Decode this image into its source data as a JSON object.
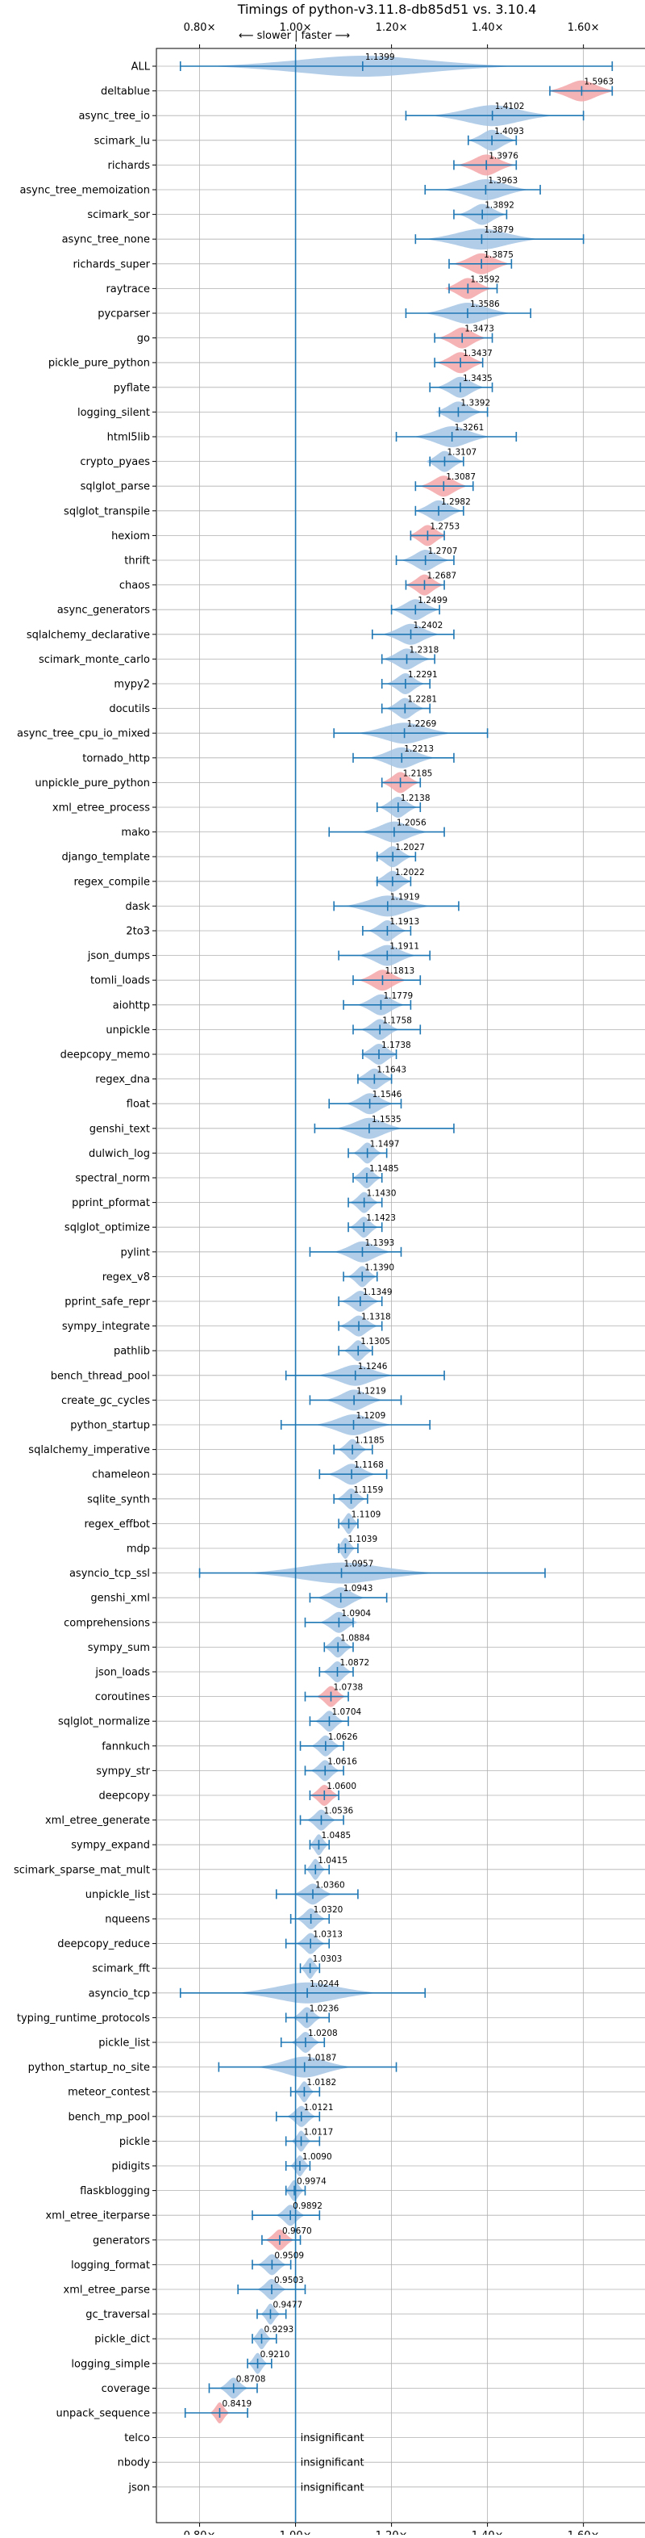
{
  "chart_data": {
    "type": "violin",
    "title": "Timings of python-v3.11.8-db85d51 vs. 3.10.4",
    "direction_label": "⟵ slower | faster ⟶",
    "x_ticks": [
      0.8,
      1.0,
      1.2,
      1.4,
      1.6
    ],
    "x_tick_labels": [
      "0.80×",
      "1.00×",
      "1.20×",
      "1.40×",
      "1.60×"
    ],
    "xlim": [
      0.71,
      1.73
    ],
    "reference_line": 1.0,
    "grid": true,
    "colors": {
      "faster": "#a4c4e4",
      "slower": "#f4a6a8",
      "whisker": "#1f77b4",
      "reference": "#1f77b4",
      "grid": "#b0b0b0"
    },
    "insignificant_text": "insignificant",
    "benchmarks": [
      {
        "name": "ALL",
        "mean": 1.1399,
        "label": "1.1399",
        "min": 0.76,
        "max": 1.66,
        "spread": 0.32,
        "highlight": false
      },
      {
        "name": "deltablue",
        "mean": 1.5963,
        "label": "1.5963",
        "min": 1.53,
        "max": 1.66,
        "spread": 0.07,
        "highlight": true
      },
      {
        "name": "async_tree_io",
        "mean": 1.4102,
        "label": "1.4102",
        "min": 1.23,
        "max": 1.6,
        "spread": 0.13,
        "highlight": false
      },
      {
        "name": "scimark_lu",
        "mean": 1.4093,
        "label": "1.4093",
        "min": 1.36,
        "max": 1.46,
        "spread": 0.05,
        "highlight": false
      },
      {
        "name": "richards",
        "mean": 1.3976,
        "label": "1.3976",
        "min": 1.33,
        "max": 1.46,
        "spread": 0.06,
        "highlight": true
      },
      {
        "name": "async_tree_memoization",
        "mean": 1.3963,
        "label": "1.3963",
        "min": 1.27,
        "max": 1.51,
        "spread": 0.09,
        "highlight": false
      },
      {
        "name": "scimark_sor",
        "mean": 1.3892,
        "label": "1.3892",
        "min": 1.33,
        "max": 1.44,
        "spread": 0.05,
        "highlight": false
      },
      {
        "name": "async_tree_none",
        "mean": 1.3879,
        "label": "1.3879",
        "min": 1.25,
        "max": 1.6,
        "spread": 0.12,
        "highlight": false
      },
      {
        "name": "richards_super",
        "mean": 1.3875,
        "label": "1.3875",
        "min": 1.32,
        "max": 1.45,
        "spread": 0.06,
        "highlight": true
      },
      {
        "name": "raytrace",
        "mean": 1.3592,
        "label": "1.3592",
        "min": 1.32,
        "max": 1.42,
        "spread": 0.05,
        "highlight": true
      },
      {
        "name": "pycparser",
        "mean": 1.3586,
        "label": "1.3586",
        "min": 1.23,
        "max": 1.49,
        "spread": 0.09,
        "highlight": false
      },
      {
        "name": "go",
        "mean": 1.3473,
        "label": "1.3473",
        "min": 1.29,
        "max": 1.41,
        "spread": 0.05,
        "highlight": true
      },
      {
        "name": "pickle_pure_python",
        "mean": 1.3437,
        "label": "1.3437",
        "min": 1.29,
        "max": 1.39,
        "spread": 0.05,
        "highlight": true
      },
      {
        "name": "pyflate",
        "mean": 1.3435,
        "label": "1.3435",
        "min": 1.28,
        "max": 1.41,
        "spread": 0.05,
        "highlight": false
      },
      {
        "name": "logging_silent",
        "mean": 1.3392,
        "label": "1.3392",
        "min": 1.3,
        "max": 1.4,
        "spread": 0.05,
        "highlight": false
      },
      {
        "name": "html5lib",
        "mean": 1.3261,
        "label": "1.3261",
        "min": 1.21,
        "max": 1.46,
        "spread": 0.08,
        "highlight": false
      },
      {
        "name": "crypto_pyaes",
        "mean": 1.3107,
        "label": "1.3107",
        "min": 1.28,
        "max": 1.35,
        "spread": 0.04,
        "highlight": false
      },
      {
        "name": "sqlglot_parse",
        "mean": 1.3087,
        "label": "1.3087",
        "min": 1.25,
        "max": 1.37,
        "spread": 0.05,
        "highlight": true
      },
      {
        "name": "sqlglot_transpile",
        "mean": 1.2982,
        "label": "1.2982",
        "min": 1.25,
        "max": 1.35,
        "spread": 0.05,
        "highlight": false
      },
      {
        "name": "hexiom",
        "mean": 1.2753,
        "label": "1.2753",
        "min": 1.24,
        "max": 1.31,
        "spread": 0.04,
        "highlight": true
      },
      {
        "name": "thrift",
        "mean": 1.2707,
        "label": "1.2707",
        "min": 1.21,
        "max": 1.33,
        "spread": 0.05,
        "highlight": false
      },
      {
        "name": "chaos",
        "mean": 1.2687,
        "label": "1.2687",
        "min": 1.23,
        "max": 1.31,
        "spread": 0.04,
        "highlight": true
      },
      {
        "name": "async_generators",
        "mean": 1.2499,
        "label": "1.2499",
        "min": 1.2,
        "max": 1.3,
        "spread": 0.05,
        "highlight": false
      },
      {
        "name": "sqlalchemy_declarative",
        "mean": 1.2402,
        "label": "1.2402",
        "min": 1.16,
        "max": 1.33,
        "spread": 0.06,
        "highlight": false
      },
      {
        "name": "scimark_monte_carlo",
        "mean": 1.2318,
        "label": "1.2318",
        "min": 1.18,
        "max": 1.29,
        "spread": 0.05,
        "highlight": false
      },
      {
        "name": "mypy2",
        "mean": 1.2291,
        "label": "1.2291",
        "min": 1.18,
        "max": 1.28,
        "spread": 0.04,
        "highlight": false
      },
      {
        "name": "docutils",
        "mean": 1.2281,
        "label": "1.2281",
        "min": 1.18,
        "max": 1.28,
        "spread": 0.04,
        "highlight": false
      },
      {
        "name": "async_tree_cpu_io_mixed",
        "mean": 1.2269,
        "label": "1.2269",
        "min": 1.08,
        "max": 1.4,
        "spread": 0.1,
        "highlight": false
      },
      {
        "name": "tornado_http",
        "mean": 1.2213,
        "label": "1.2213",
        "min": 1.12,
        "max": 1.33,
        "spread": 0.07,
        "highlight": false
      },
      {
        "name": "unpickle_pure_python",
        "mean": 1.2185,
        "label": "1.2185",
        "min": 1.18,
        "max": 1.26,
        "spread": 0.04,
        "highlight": true
      },
      {
        "name": "xml_etree_process",
        "mean": 1.2138,
        "label": "1.2138",
        "min": 1.17,
        "max": 1.26,
        "spread": 0.04,
        "highlight": false
      },
      {
        "name": "mako",
        "mean": 1.2056,
        "label": "1.2056",
        "min": 1.07,
        "max": 1.31,
        "spread": 0.07,
        "highlight": false
      },
      {
        "name": "django_template",
        "mean": 1.2027,
        "label": "1.2027",
        "min": 1.17,
        "max": 1.25,
        "spread": 0.04,
        "highlight": false
      },
      {
        "name": "regex_compile",
        "mean": 1.2022,
        "label": "1.2022",
        "min": 1.17,
        "max": 1.24,
        "spread": 0.04,
        "highlight": false
      },
      {
        "name": "dask",
        "mean": 1.1919,
        "label": "1.1919",
        "min": 1.08,
        "max": 1.34,
        "spread": 0.09,
        "highlight": false
      },
      {
        "name": "2to3",
        "mean": 1.1913,
        "label": "1.1913",
        "min": 1.14,
        "max": 1.24,
        "spread": 0.04,
        "highlight": false
      },
      {
        "name": "json_dumps",
        "mean": 1.1911,
        "label": "1.1911",
        "min": 1.09,
        "max": 1.28,
        "spread": 0.06,
        "highlight": false
      },
      {
        "name": "tomli_loads",
        "mean": 1.1813,
        "label": "1.1813",
        "min": 1.12,
        "max": 1.26,
        "spread": 0.05,
        "highlight": true
      },
      {
        "name": "aiohttp",
        "mean": 1.1779,
        "label": "1.1779",
        "min": 1.1,
        "max": 1.24,
        "spread": 0.05,
        "highlight": false
      },
      {
        "name": "unpickle",
        "mean": 1.1758,
        "label": "1.1758",
        "min": 1.12,
        "max": 1.26,
        "spread": 0.04,
        "highlight": false
      },
      {
        "name": "deepcopy_memo",
        "mean": 1.1738,
        "label": "1.1738",
        "min": 1.14,
        "max": 1.21,
        "spread": 0.04,
        "highlight": false
      },
      {
        "name": "regex_dna",
        "mean": 1.1643,
        "label": "1.1643",
        "min": 1.13,
        "max": 1.2,
        "spread": 0.04,
        "highlight": false
      },
      {
        "name": "float",
        "mean": 1.1546,
        "label": "1.1546",
        "min": 1.07,
        "max": 1.22,
        "spread": 0.05,
        "highlight": false
      },
      {
        "name": "genshi_text",
        "mean": 1.1535,
        "label": "1.1535",
        "min": 1.04,
        "max": 1.33,
        "spread": 0.07,
        "highlight": false
      },
      {
        "name": "dulwich_log",
        "mean": 1.1497,
        "label": "1.1497",
        "min": 1.11,
        "max": 1.19,
        "spread": 0.03,
        "highlight": false
      },
      {
        "name": "spectral_norm",
        "mean": 1.1485,
        "label": "1.1485",
        "min": 1.12,
        "max": 1.18,
        "spread": 0.03,
        "highlight": false
      },
      {
        "name": "pprint_pformat",
        "mean": 1.143,
        "label": "1.1430",
        "min": 1.11,
        "max": 1.18,
        "spread": 0.03,
        "highlight": false
      },
      {
        "name": "sqlglot_optimize",
        "mean": 1.1423,
        "label": "1.1423",
        "min": 1.11,
        "max": 1.18,
        "spread": 0.03,
        "highlight": false
      },
      {
        "name": "pylint",
        "mean": 1.1393,
        "label": "1.1393",
        "min": 1.03,
        "max": 1.22,
        "spread": 0.06,
        "highlight": false
      },
      {
        "name": "regex_v8",
        "mean": 1.139,
        "label": "1.1390",
        "min": 1.1,
        "max": 1.17,
        "spread": 0.03,
        "highlight": false
      },
      {
        "name": "pprint_safe_repr",
        "mean": 1.1349,
        "label": "1.1349",
        "min": 1.09,
        "max": 1.18,
        "spread": 0.04,
        "highlight": false
      },
      {
        "name": "sympy_integrate",
        "mean": 1.1318,
        "label": "1.1318",
        "min": 1.09,
        "max": 1.18,
        "spread": 0.04,
        "highlight": false
      },
      {
        "name": "pathlib",
        "mean": 1.1305,
        "label": "1.1305",
        "min": 1.09,
        "max": 1.16,
        "spread": 0.03,
        "highlight": false
      },
      {
        "name": "bench_thread_pool",
        "mean": 1.1246,
        "label": "1.1246",
        "min": 0.98,
        "max": 1.31,
        "spread": 0.08,
        "highlight": false
      },
      {
        "name": "create_gc_cycles",
        "mean": 1.1219,
        "label": "1.1219",
        "min": 1.03,
        "max": 1.22,
        "spread": 0.06,
        "highlight": false
      },
      {
        "name": "python_startup",
        "mean": 1.1209,
        "label": "1.1209",
        "min": 0.97,
        "max": 1.28,
        "spread": 0.08,
        "highlight": false
      },
      {
        "name": "sqlalchemy_imperative",
        "mean": 1.1185,
        "label": "1.1185",
        "min": 1.08,
        "max": 1.16,
        "spread": 0.03,
        "highlight": false
      },
      {
        "name": "chameleon",
        "mean": 1.1168,
        "label": "1.1168",
        "min": 1.05,
        "max": 1.19,
        "spread": 0.05,
        "highlight": false
      },
      {
        "name": "sqlite_synth",
        "mean": 1.1159,
        "label": "1.1159",
        "min": 1.08,
        "max": 1.15,
        "spread": 0.03,
        "highlight": false
      },
      {
        "name": "regex_effbot",
        "mean": 1.1109,
        "label": "1.1109",
        "min": 1.09,
        "max": 1.13,
        "spread": 0.02,
        "highlight": false
      },
      {
        "name": "mdp",
        "mean": 1.1039,
        "label": "1.1039",
        "min": 1.09,
        "max": 1.13,
        "spread": 0.02,
        "highlight": false
      },
      {
        "name": "asyncio_tcp_ssl",
        "mean": 1.0957,
        "label": "1.0957",
        "min": 0.8,
        "max": 1.52,
        "spread": 0.2,
        "highlight": false
      },
      {
        "name": "genshi_xml",
        "mean": 1.0943,
        "label": "1.0943",
        "min": 1.03,
        "max": 1.19,
        "spread": 0.05,
        "highlight": false
      },
      {
        "name": "comprehensions",
        "mean": 1.0904,
        "label": "1.0904",
        "min": 1.02,
        "max": 1.12,
        "spread": 0.04,
        "highlight": false
      },
      {
        "name": "sympy_sum",
        "mean": 1.0884,
        "label": "1.0884",
        "min": 1.06,
        "max": 1.12,
        "spread": 0.03,
        "highlight": false
      },
      {
        "name": "json_loads",
        "mean": 1.0872,
        "label": "1.0872",
        "min": 1.05,
        "max": 1.12,
        "spread": 0.03,
        "highlight": false
      },
      {
        "name": "coroutines",
        "mean": 1.0738,
        "label": "1.0738",
        "min": 1.02,
        "max": 1.11,
        "spread": 0.03,
        "highlight": true
      },
      {
        "name": "sqlglot_normalize",
        "mean": 1.0704,
        "label": "1.0704",
        "min": 1.03,
        "max": 1.11,
        "spread": 0.03,
        "highlight": false
      },
      {
        "name": "fannkuch",
        "mean": 1.0626,
        "label": "1.0626",
        "min": 1.01,
        "max": 1.1,
        "spread": 0.03,
        "highlight": false
      },
      {
        "name": "sympy_str",
        "mean": 1.0616,
        "label": "1.0616",
        "min": 1.02,
        "max": 1.1,
        "spread": 0.03,
        "highlight": false
      },
      {
        "name": "deepcopy",
        "mean": 1.06,
        "label": "1.0600",
        "min": 1.03,
        "max": 1.09,
        "spread": 0.03,
        "highlight": true
      },
      {
        "name": "xml_etree_generate",
        "mean": 1.0536,
        "label": "1.0536",
        "min": 1.01,
        "max": 1.1,
        "spread": 0.03,
        "highlight": false
      },
      {
        "name": "sympy_expand",
        "mean": 1.0485,
        "label": "1.0485",
        "min": 1.03,
        "max": 1.07,
        "spread": 0.02,
        "highlight": false
      },
      {
        "name": "scimark_sparse_mat_mult",
        "mean": 1.0415,
        "label": "1.0415",
        "min": 1.02,
        "max": 1.07,
        "spread": 0.02,
        "highlight": false
      },
      {
        "name": "unpickle_list",
        "mean": 1.036,
        "label": "1.0360",
        "min": 0.96,
        "max": 1.13,
        "spread": 0.04,
        "highlight": false
      },
      {
        "name": "nqueens",
        "mean": 1.032,
        "label": "1.0320",
        "min": 0.99,
        "max": 1.07,
        "spread": 0.03,
        "highlight": false
      },
      {
        "name": "deepcopy_reduce",
        "mean": 1.0313,
        "label": "1.0313",
        "min": 0.98,
        "max": 1.07,
        "spread": 0.03,
        "highlight": false
      },
      {
        "name": "scimark_fft",
        "mean": 1.0303,
        "label": "1.0303",
        "min": 1.01,
        "max": 1.05,
        "spread": 0.02,
        "highlight": false
      },
      {
        "name": "asyncio_tcp",
        "mean": 1.0244,
        "label": "1.0244",
        "min": 0.76,
        "max": 1.27,
        "spread": 0.15,
        "highlight": false
      },
      {
        "name": "typing_runtime_protocols",
        "mean": 1.0236,
        "label": "1.0236",
        "min": 0.98,
        "max": 1.07,
        "spread": 0.03,
        "highlight": false
      },
      {
        "name": "pickle_list",
        "mean": 1.0208,
        "label": "1.0208",
        "min": 0.97,
        "max": 1.06,
        "spread": 0.03,
        "highlight": false
      },
      {
        "name": "python_startup_no_site",
        "mean": 1.0187,
        "label": "1.0187",
        "min": 0.84,
        "max": 1.21,
        "spread": 0.1,
        "highlight": false
      },
      {
        "name": "meteor_contest",
        "mean": 1.0182,
        "label": "1.0182",
        "min": 0.99,
        "max": 1.05,
        "spread": 0.02,
        "highlight": false
      },
      {
        "name": "bench_mp_pool",
        "mean": 1.0121,
        "label": "1.0121",
        "min": 0.96,
        "max": 1.05,
        "spread": 0.03,
        "highlight": false
      },
      {
        "name": "pickle",
        "mean": 1.0117,
        "label": "1.0117",
        "min": 0.98,
        "max": 1.05,
        "spread": 0.02,
        "highlight": false
      },
      {
        "name": "pidigits",
        "mean": 1.009,
        "label": "1.0090",
        "min": 0.98,
        "max": 1.03,
        "spread": 0.02,
        "highlight": false
      },
      {
        "name": "flaskblogging",
        "mean": 0.9974,
        "label": "0.9974",
        "min": 0.98,
        "max": 1.02,
        "spread": 0.02,
        "highlight": false
      },
      {
        "name": "xml_etree_iterparse",
        "mean": 0.9892,
        "label": "0.9892",
        "min": 0.91,
        "max": 1.05,
        "spread": 0.03,
        "highlight": false
      },
      {
        "name": "generators",
        "mean": 0.967,
        "label": "0.9670",
        "min": 0.93,
        "max": 1.01,
        "spread": 0.03,
        "highlight": true
      },
      {
        "name": "logging_format",
        "mean": 0.9509,
        "label": "0.9509",
        "min": 0.91,
        "max": 0.99,
        "spread": 0.03,
        "highlight": false
      },
      {
        "name": "xml_etree_parse",
        "mean": 0.9503,
        "label": "0.9503",
        "min": 0.88,
        "max": 1.02,
        "spread": 0.03,
        "highlight": false
      },
      {
        "name": "gc_traversal",
        "mean": 0.9477,
        "label": "0.9477",
        "min": 0.92,
        "max": 0.98,
        "spread": 0.02,
        "highlight": false
      },
      {
        "name": "pickle_dict",
        "mean": 0.9293,
        "label": "0.9293",
        "min": 0.91,
        "max": 0.96,
        "spread": 0.02,
        "highlight": false
      },
      {
        "name": "logging_simple",
        "mean": 0.921,
        "label": "0.9210",
        "min": 0.9,
        "max": 0.95,
        "spread": 0.02,
        "highlight": false
      },
      {
        "name": "coverage",
        "mean": 0.8708,
        "label": "0.8708",
        "min": 0.82,
        "max": 0.92,
        "spread": 0.03,
        "highlight": false
      },
      {
        "name": "unpack_sequence",
        "mean": 0.8419,
        "label": "0.8419",
        "min": 0.77,
        "max": 0.9,
        "spread": 0.02,
        "highlight": true
      },
      {
        "name": "telco",
        "mean": null,
        "label": "",
        "min": null,
        "max": null,
        "spread": null,
        "highlight": false
      },
      {
        "name": "nbody",
        "mean": null,
        "label": "",
        "min": null,
        "max": null,
        "spread": null,
        "highlight": false
      },
      {
        "name": "json",
        "mean": null,
        "label": "",
        "min": null,
        "max": null,
        "spread": null,
        "highlight": false
      }
    ]
  }
}
